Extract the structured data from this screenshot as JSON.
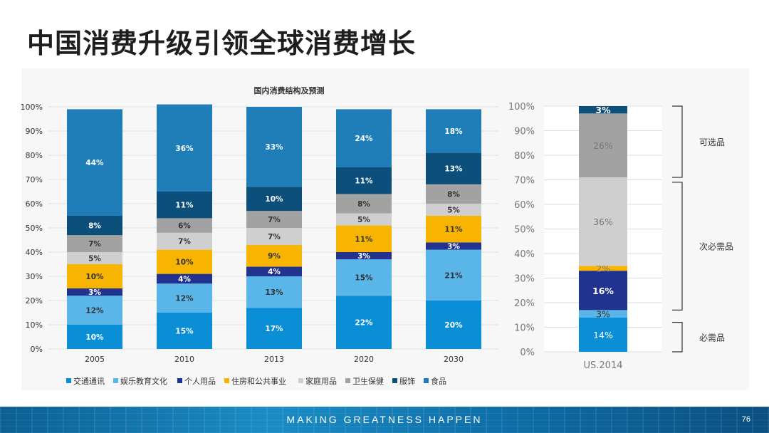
{
  "slide": {
    "title": "中国消费升级引领全球消费增长",
    "footer_slogan": "MAKING GREATNESS HAPPEN",
    "page_number": "76"
  },
  "chart_data": [
    {
      "type": "bar",
      "stacked": true,
      "title": "国内消费结构及预测",
      "categories": [
        "2005",
        "2010",
        "2013",
        "2020",
        "2030"
      ],
      "ylim": [
        0,
        100
      ],
      "y_ticks": [
        "0%",
        "10%",
        "20%",
        "30%",
        "40%",
        "50%",
        "60%",
        "70%",
        "80%",
        "90%",
        "100%"
      ],
      "legend_position": "bottom",
      "series": [
        {
          "name": "交通通讯",
          "color": "#0a8ed6",
          "values": [
            10,
            15,
            17,
            22,
            20
          ],
          "labels": [
            "10%",
            "15%",
            "17%",
            "22%",
            "20%"
          ]
        },
        {
          "name": "娱乐教育文化",
          "color": "#5ab5e8",
          "values": [
            12,
            12,
            13,
            15,
            21
          ],
          "labels": [
            "12%",
            "12%",
            "13%",
            "15%",
            "21%"
          ]
        },
        {
          "name": "个人用品",
          "color": "#22338f",
          "values": [
            3,
            4,
            4,
            3,
            3
          ],
          "labels": [
            "3%",
            "4%",
            "4%",
            "3%",
            "3%"
          ]
        },
        {
          "name": "住房和公共事业",
          "color": "#f7b400",
          "values": [
            10,
            10,
            9,
            11,
            11
          ],
          "labels": [
            "10%",
            "10%",
            "9%",
            "11%",
            "11%"
          ]
        },
        {
          "name": "家庭用品",
          "color": "#cfcfcf",
          "values": [
            5,
            7,
            7,
            5,
            5
          ],
          "labels": [
            "5%",
            "7%",
            "7%",
            "5%",
            "5%"
          ]
        },
        {
          "name": "卫生保健",
          "color": "#a2a2a2",
          "values": [
            7,
            6,
            7,
            8,
            8
          ],
          "labels": [
            "7%",
            "6%",
            "7%",
            "8%",
            "8%"
          ]
        },
        {
          "name": "服饰",
          "color": "#0b4f7a",
          "values": [
            8,
            11,
            10,
            11,
            13
          ],
          "labels": [
            "8%",
            "11%",
            "10%",
            "11%",
            "13%"
          ]
        },
        {
          "name": "食品",
          "color": "#1f7eb8",
          "values": [
            44,
            36,
            33,
            24,
            18
          ],
          "labels": [
            "44%",
            "36%",
            "33%",
            "24%",
            "18%"
          ]
        }
      ]
    },
    {
      "type": "bar",
      "stacked": true,
      "title": "",
      "categories": [
        "US.2014"
      ],
      "ylim": [
        0,
        100
      ],
      "y_ticks": [
        "0%",
        "10%",
        "20%",
        "30%",
        "40%",
        "50%",
        "60%",
        "70%",
        "80%",
        "90%",
        "100%"
      ],
      "series": [
        {
          "name": "交通通讯",
          "color": "#0a8ed6",
          "values": [
            14
          ],
          "labels": [
            "14%"
          ]
        },
        {
          "name": "娱乐教育文化",
          "color": "#5ab5e8",
          "values": [
            3
          ],
          "labels": [
            "3%"
          ]
        },
        {
          "name": "个人用品",
          "color": "#22338f",
          "values": [
            16
          ],
          "labels": [
            "16%"
          ]
        },
        {
          "name": "住房和公共事业",
          "color": "#f7b400",
          "values": [
            2
          ],
          "labels": [
            "2%"
          ]
        },
        {
          "name": "家庭用品",
          "color": "#cfcfcf",
          "values": [
            36
          ],
          "labels": [
            "36%"
          ]
        },
        {
          "name": "卫生保健",
          "color": "#a2a2a2",
          "values": [
            26
          ],
          "labels": [
            "26%"
          ]
        },
        {
          "name": "服饰",
          "color": "#0b4f7a",
          "values": [
            3
          ],
          "labels": [
            "3%"
          ]
        }
      ],
      "groups": [
        {
          "label": "可选品",
          "range": [
            71,
            100
          ]
        },
        {
          "label": "次必需品",
          "range": [
            17,
            69
          ]
        },
        {
          "label": "必需品",
          "range": [
            0,
            12
          ]
        }
      ]
    }
  ]
}
